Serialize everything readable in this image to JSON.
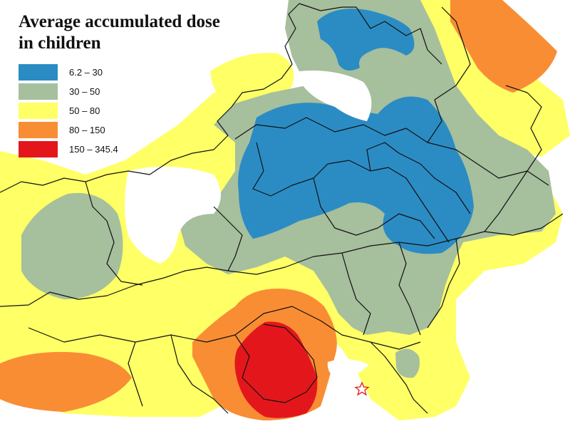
{
  "title": {
    "line1": "Average accumulated dose",
    "line2": "in children"
  },
  "legend": [
    {
      "label": "6.2 – 30",
      "color": "#2b8cc4"
    },
    {
      "label": "30 – 50",
      "color": "#a6bf9d"
    },
    {
      "label": "50 – 80",
      "color": "#ffff66"
    },
    {
      "label": "80 – 150",
      "color": "#f98d34"
    },
    {
      "label": "150 – 345.4",
      "color": "#e3171b"
    }
  ],
  "markers": [
    {
      "icon": "star-outline-icon",
      "color": "#e3171b"
    }
  ]
}
